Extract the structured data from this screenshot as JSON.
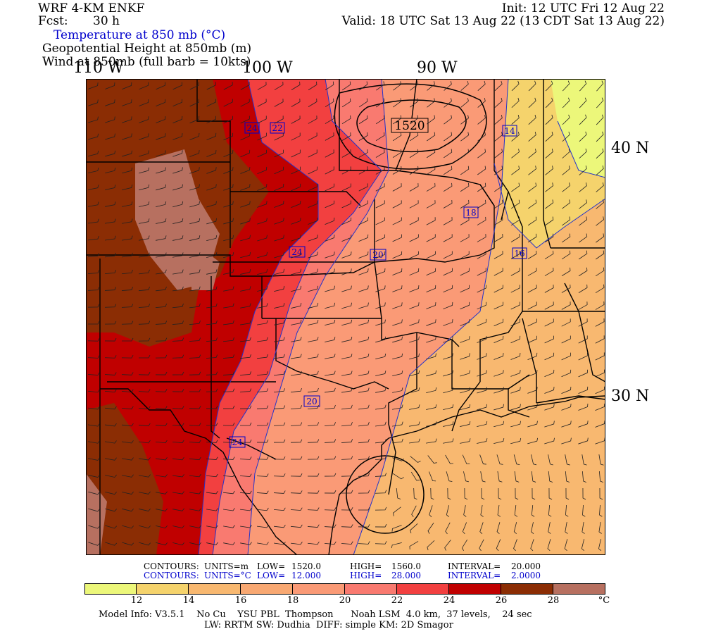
{
  "header": {
    "model": "WRF 4-KM ENKF",
    "fcst_label": "Fcst:",
    "fcst_value": "30 h",
    "init": "Init: 12 UTC Fri 12 Aug 22",
    "valid": "Valid: 18 UTC Sat 13 Aug 22 (13 CDT Sat 13 Aug 22)",
    "field_temp": "Temperature at 850 mb (°C)",
    "field_height": "Geopotential Height at 850mb (m)",
    "field_wind": "Wind at 850mb (full barb = 10kts)"
  },
  "axes": {
    "lon_labels": [
      "110 W",
      "100 W",
      "90 W"
    ],
    "lat_labels": [
      "40 N",
      "30 N"
    ]
  },
  "map_labels": {
    "height_contour": "1520",
    "temp_contours": [
      "24",
      "22",
      "14",
      "18",
      "16",
      "24",
      "20",
      "20",
      "24"
    ]
  },
  "contour_info": {
    "row1": {
      "label": "CONTOURS:",
      "units": "UNITS=m",
      "low_label": "LOW=",
      "low": "1520.0",
      "high_label": "HIGH=",
      "high": "1560.0",
      "interval_label": "INTERVAL=",
      "interval": "20.000"
    },
    "row2": {
      "label": "CONTOURS:",
      "units": "UNITS=°C",
      "low_label": "LOW=",
      "low": "12.000",
      "high_label": "HIGH=",
      "high": "28.000",
      "interval_label": "INTERVAL=",
      "interval": "2.0000"
    }
  },
  "colorbar": {
    "colors": [
      "#ecf77a",
      "#f5d36c",
      "#f8b870",
      "#f8a872",
      "#fa9a76",
      "#f97a70",
      "#f24040",
      "#c00000",
      "#8b2d04",
      "#b77060"
    ],
    "ticks": [
      "12",
      "14",
      "16",
      "18",
      "20",
      "22",
      "24",
      "26",
      "28"
    ],
    "unit": "°C"
  },
  "footer": {
    "line1": "Model Info: V3.5.1    No Cu    YSU PBL  Thompson      Noah LSM  4.0 km,  37 levels,    24 sec",
    "line2": "LW: RRTM SW: Dudhia  DIFF: simple KM: 2D Smagor"
  }
}
